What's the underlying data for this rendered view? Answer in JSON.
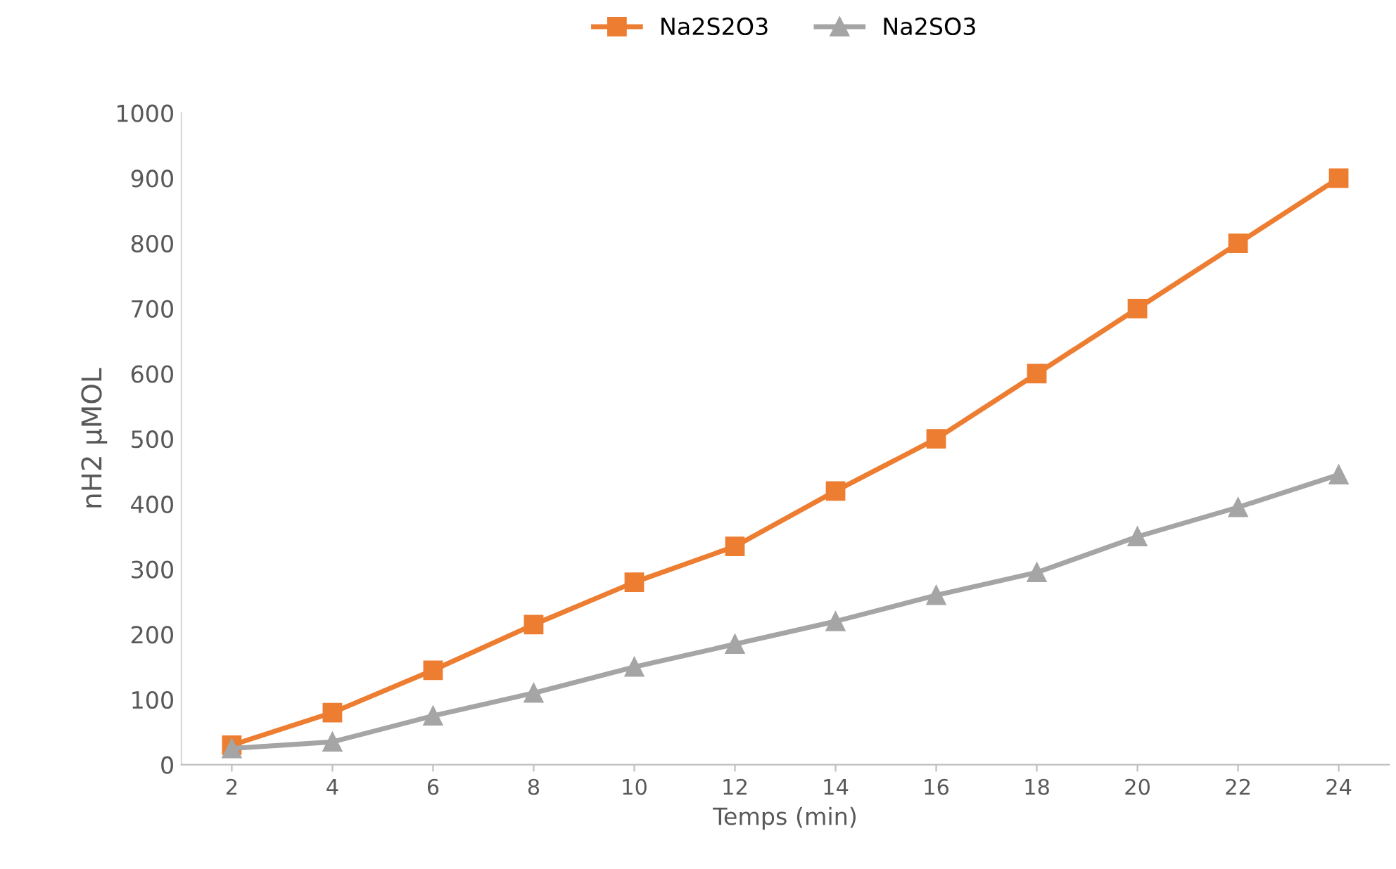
{
  "chart_data": {
    "type": "line",
    "ylabel": "nH2 µMOL",
    "xlabel": "Temps (min)",
    "categories": [
      "2",
      "4",
      "6",
      "8",
      "10",
      "12",
      "14",
      "16",
      "18",
      "20",
      "22",
      "24"
    ],
    "series": [
      {
        "name": "Na2S2O3",
        "color": "#ed7d31",
        "marker": "square",
        "values": [
          30,
          80,
          145,
          215,
          280,
          335,
          420,
          500,
          600,
          700,
          800,
          900
        ]
      },
      {
        "name": "Na2SO3",
        "color": "#a5a5a5",
        "marker": "triangle",
        "values": [
          25,
          35,
          75,
          110,
          150,
          185,
          220,
          260,
          295,
          350,
          395,
          445
        ]
      }
    ],
    "ylim": [
      0,
      1000
    ],
    "yticks": [
      0,
      100,
      200,
      300,
      400,
      500,
      600,
      700,
      800,
      900,
      1000
    ],
    "grid": false,
    "legend": "top",
    "line_style": "solid"
  }
}
